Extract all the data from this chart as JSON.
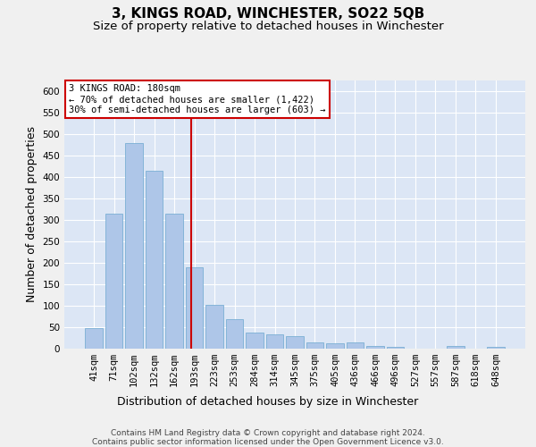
{
  "title": "3, KINGS ROAD, WINCHESTER, SO22 5QB",
  "subtitle": "Size of property relative to detached houses in Winchester",
  "xlabel": "Distribution of detached houses by size in Winchester",
  "ylabel": "Number of detached properties",
  "categories": [
    "41sqm",
    "71sqm",
    "102sqm",
    "132sqm",
    "162sqm",
    "193sqm",
    "223sqm",
    "253sqm",
    "284sqm",
    "314sqm",
    "345sqm",
    "375sqm",
    "405sqm",
    "436sqm",
    "466sqm",
    "496sqm",
    "527sqm",
    "557sqm",
    "587sqm",
    "618sqm",
    "648sqm"
  ],
  "values": [
    47,
    315,
    480,
    415,
    315,
    190,
    103,
    68,
    38,
    33,
    29,
    14,
    13,
    14,
    7,
    4,
    1,
    0,
    7,
    1,
    5
  ],
  "bar_color": "#aec6e8",
  "bar_edge_color": "#7aafd4",
  "vline_x": 4.85,
  "vline_color": "#cc0000",
  "annotation_text": "3 KINGS ROAD: 180sqm\n← 70% of detached houses are smaller (1,422)\n30% of semi-detached houses are larger (603) →",
  "annotation_box_color": "#ffffff",
  "annotation_box_edge_color": "#cc0000",
  "ylim": [
    0,
    625
  ],
  "yticks": [
    0,
    50,
    100,
    150,
    200,
    250,
    300,
    350,
    400,
    450,
    500,
    550,
    600
  ],
  "background_color": "#dce6f5",
  "grid_color": "#ffffff",
  "title_fontsize": 11,
  "subtitle_fontsize": 9.5,
  "xlabel_fontsize": 9,
  "ylabel_fontsize": 9,
  "tick_fontsize": 7.5,
  "footer_text": "Contains HM Land Registry data © Crown copyright and database right 2024.\nContains public sector information licensed under the Open Government Licence v3.0.",
  "footer_fontsize": 6.5
}
